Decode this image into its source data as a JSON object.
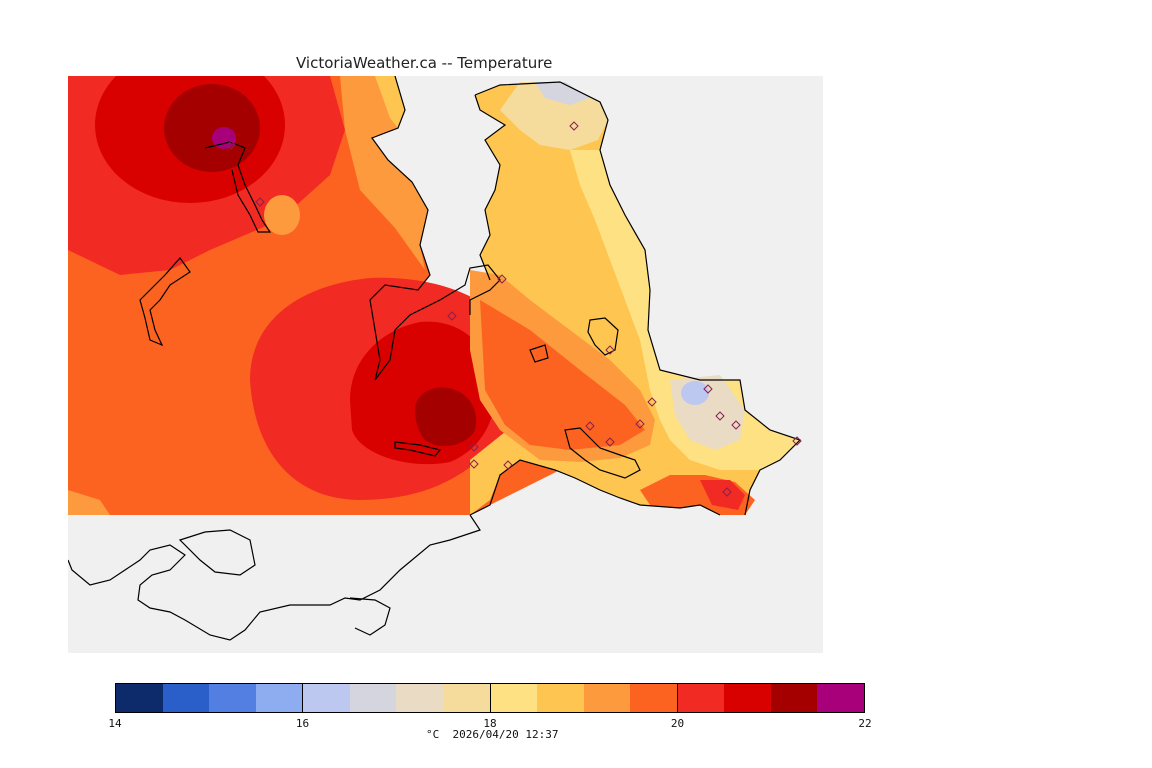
{
  "title": "VictoriaWeather.ca -- Temperature",
  "footer": "°C  2026/04/20 12:37",
  "colorbar": {
    "min": 14,
    "max": 22,
    "tick_labels": [
      "14",
      "16",
      "18",
      "20",
      "22"
    ],
    "colors": [
      "#0d2a6a",
      "#2a5fc9",
      "#547fe2",
      "#8eacf0",
      "#bcc8ef",
      "#d4d5de",
      "#eadcc4",
      "#f5dc9c",
      "#fee183",
      "#fec650",
      "#fd9a3e",
      "#fd6320",
      "#f22a24",
      "#d90000",
      "#a50000",
      "#a8007a"
    ]
  },
  "colors": {
    "sea": "#f0f0f0",
    "coastline": "#000000",
    "station_marker": "#c0407a"
  }
}
